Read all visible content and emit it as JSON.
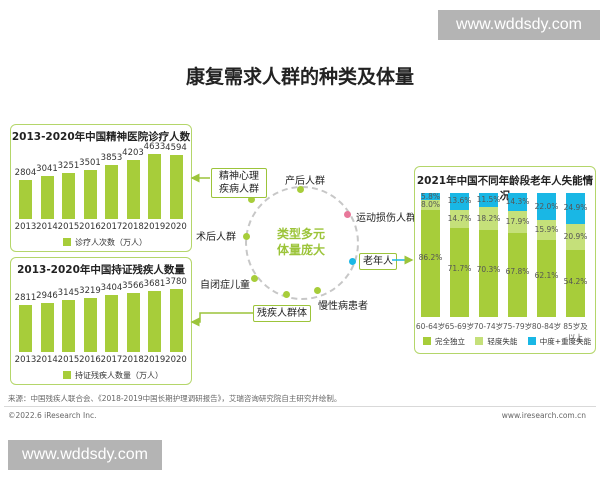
{
  "watermark_top": "www.wddsdy.com",
  "watermark_bottom": "www.wddsdy.com",
  "title": "康复需求人群的种类及体量",
  "colors": {
    "green": "#a7cd3a",
    "light_green": "#c5e07a",
    "blue": "#19b7e5",
    "pink": "#e8789a"
  },
  "center": {
    "line1": "类型多元",
    "line2": "体量庞大"
  },
  "categories": [
    {
      "id": "mental",
      "label": "精神心理疾病人群",
      "dot": "#a7cd3a",
      "boxed": true
    },
    {
      "id": "postpartum",
      "label": "产后人群",
      "dot": "#a7cd3a",
      "boxed": false
    },
    {
      "id": "sports",
      "label": "运动损伤人群",
      "dot": "#e8789a",
      "boxed": false
    },
    {
      "id": "elderly",
      "label": "老年人",
      "dot": "#19b7e5",
      "boxed": true
    },
    {
      "id": "chronic",
      "label": "慢性病患者",
      "dot": "#a7cd3a",
      "boxed": false
    },
    {
      "id": "disabled",
      "label": "残疾人群体",
      "dot": "#a7cd3a",
      "boxed": true
    },
    {
      "id": "autism",
      "label": "自闭症儿童",
      "dot": "#a7cd3a",
      "boxed": false
    },
    {
      "id": "surgery",
      "label": "术后人群",
      "dot": "#a7cd3a",
      "boxed": false
    }
  ],
  "chart_data": [
    {
      "type": "bar",
      "title": "2013-2020年中国精神医院诊疗人数",
      "categories": [
        "2013",
        "2014",
        "2015",
        "2016",
        "2017",
        "2018",
        "2019",
        "2020"
      ],
      "values": [
        2804,
        3041,
        3251,
        3501,
        3853,
        4203,
        4633,
        4594
      ],
      "legend": "诊疗人次数（万人）",
      "ylim": [
        0,
        5000
      ]
    },
    {
      "type": "bar",
      "title": "2013-2020年中国持证残疾人数量",
      "categories": [
        "2013",
        "2014",
        "2015",
        "2016",
        "2017",
        "2018",
        "2019",
        "2020"
      ],
      "values": [
        2811,
        2946,
        3145,
        3219,
        3404,
        3566,
        3681,
        3780
      ],
      "legend": "持证残疾人数量（万人）",
      "ylim": [
        0,
        4200
      ]
    },
    {
      "type": "bar",
      "stacked": true,
      "percent": true,
      "title": "2021年中国不同年龄段老年人失能情况",
      "categories": [
        "60-64岁",
        "65-69岁",
        "70-74岁",
        "75-79岁",
        "80-84岁",
        "85岁及以上"
      ],
      "series": [
        {
          "name": "完全独立",
          "values": [
            86.2,
            71.7,
            70.3,
            67.8,
            62.1,
            54.2
          ],
          "labels": [
            "86.2%",
            "71.7%",
            "70.3%",
            "67.8%",
            "62.1%",
            "54.2%"
          ]
        },
        {
          "name": "轻度失能",
          "values": [
            8.0,
            14.7,
            18.2,
            17.9,
            15.9,
            20.9
          ],
          "labels": [
            "8.0%",
            "14.7%",
            "18.2%",
            "17.9%",
            "15.9%",
            "20.9%"
          ]
        },
        {
          "name": "中度+重度失能",
          "values": [
            5.8,
            13.6,
            11.5,
            14.3,
            22.0,
            24.9
          ],
          "labels": [
            "5.8%",
            "13.6%",
            "11.5%",
            "14.3%",
            "22.0%",
            "24.9%"
          ]
        }
      ]
    }
  ],
  "source": "来源：中国残疾人联合会、《2018-2019中国长期护理调研报告》，艾瑞咨询研究院自主研究并绘制。",
  "copyright": "©2022.6 iResearch Inc.",
  "site": "www.iresearch.com.cn"
}
